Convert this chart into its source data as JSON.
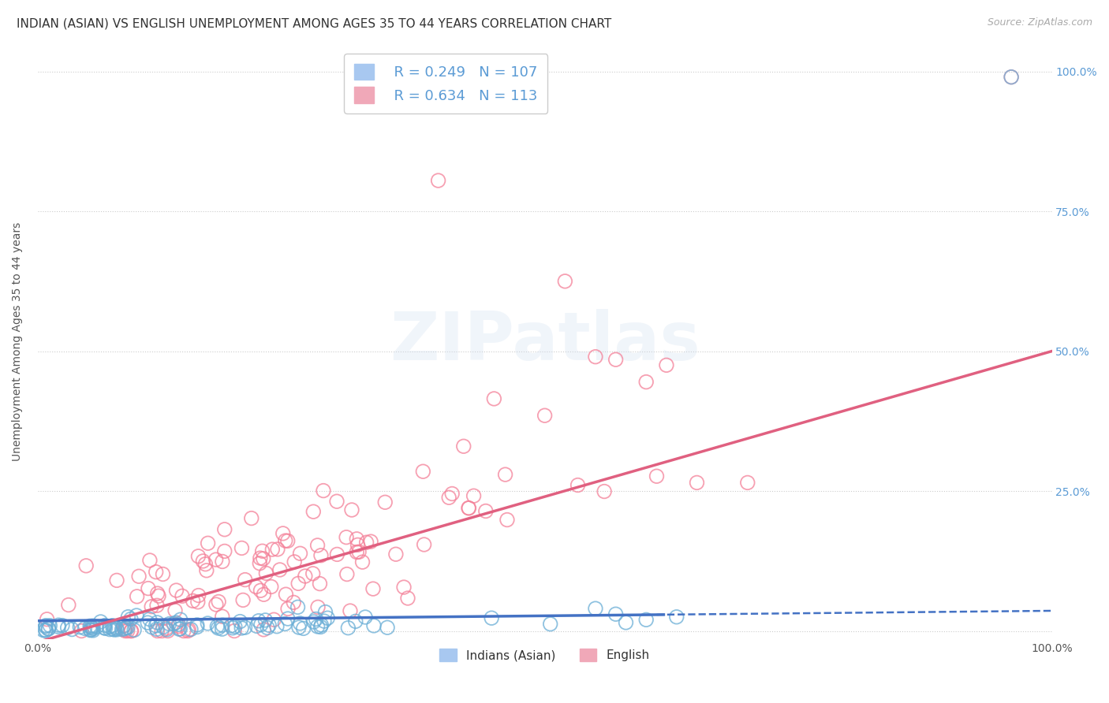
{
  "title": "INDIAN (ASIAN) VS ENGLISH UNEMPLOYMENT AMONG AGES 35 TO 44 YEARS CORRELATION CHART",
  "source": "Source: ZipAtlas.com",
  "ylabel": "Unemployment Among Ages 35 to 44 years",
  "xlim": [
    0.0,
    1.0
  ],
  "ylim": [
    -0.015,
    1.05
  ],
  "legend_r1": "R = 0.249",
  "legend_n1": "N = 107",
  "legend_r2": "R = 0.634",
  "legend_n2": "N = 113",
  "indian_color": "#6aaed6",
  "english_color": "#f48098",
  "indian_line_color": "#4472c4",
  "english_line_color": "#e06080",
  "background_color": "#ffffff",
  "grid_color": "#cccccc",
  "title_fontsize": 11,
  "axis_label_fontsize": 10,
  "tick_fontsize": 10,
  "indian_cutoff": 0.62,
  "english_slope": 0.52,
  "english_intercept": -0.02,
  "indian_slope": 0.018,
  "indian_intercept": 0.018
}
